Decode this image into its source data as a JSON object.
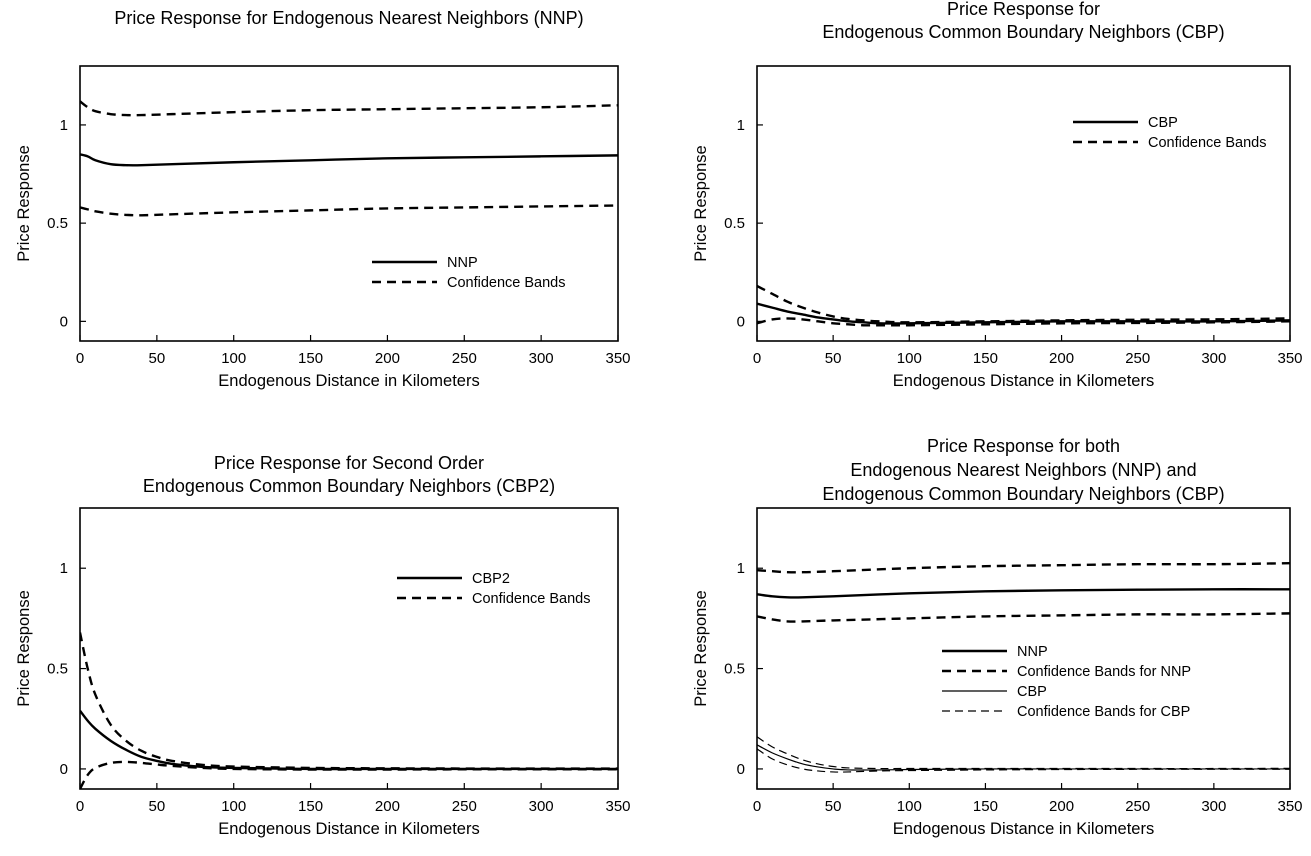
{
  "chart_data": [
    {
      "type": "line",
      "title_lines": [
        "Price Response for Endogenous Nearest Neighbors (NNP)"
      ],
      "xlabel": "Endogenous Distance in Kilometers",
      "ylabel": "Price Response",
      "xlim": [
        0,
        350
      ],
      "ylim": [
        -0.1,
        1.3
      ],
      "xticks": [
        0,
        50,
        100,
        150,
        200,
        250,
        300,
        350
      ],
      "yticks": [
        0,
        0.5,
        1
      ],
      "grid": false,
      "legend_position": "lower-right",
      "legend": [
        {
          "label": "NNP",
          "style": "solid"
        },
        {
          "label": "Confidence Bands",
          "style": "dashed"
        }
      ],
      "series": [
        {
          "name": "NNP",
          "style": "solid",
          "weight": "bold",
          "x": [
            0,
            5,
            10,
            20,
            30,
            40,
            60,
            100,
            150,
            200,
            250,
            300,
            350
          ],
          "y": [
            0.85,
            0.84,
            0.82,
            0.8,
            0.795,
            0.795,
            0.8,
            0.81,
            0.82,
            0.83,
            0.835,
            0.84,
            0.845
          ]
        },
        {
          "name": "Confidence Bands",
          "style": "dashed",
          "weight": "bold",
          "x": [
            0,
            5,
            10,
            20,
            30,
            40,
            60,
            100,
            150,
            200,
            250,
            300,
            350
          ],
          "y": [
            1.12,
            1.09,
            1.07,
            1.055,
            1.05,
            1.05,
            1.055,
            1.065,
            1.075,
            1.08,
            1.085,
            1.09,
            1.1
          ]
        },
        {
          "name": "Confidence Bands",
          "style": "dashed",
          "weight": "bold",
          "x": [
            0,
            5,
            10,
            20,
            30,
            40,
            60,
            100,
            150,
            200,
            250,
            300,
            350
          ],
          "y": [
            0.58,
            0.57,
            0.56,
            0.548,
            0.542,
            0.54,
            0.545,
            0.555,
            0.565,
            0.575,
            0.58,
            0.585,
            0.59
          ]
        }
      ]
    },
    {
      "type": "line",
      "title_lines": [
        "Price Response for",
        "Endogenous Common Boundary Neighbors (CBP)"
      ],
      "xlabel": "Endogenous Distance in Kilometers",
      "ylabel": "Price Response",
      "xlim": [
        0,
        350
      ],
      "ylim": [
        -0.1,
        1.3
      ],
      "xticks": [
        0,
        50,
        100,
        150,
        200,
        250,
        300,
        350
      ],
      "yticks": [
        0,
        0.5,
        1
      ],
      "grid": false,
      "legend_position": "upper-right",
      "legend": [
        {
          "label": "CBP",
          "style": "solid"
        },
        {
          "label": "Confidence Bands",
          "style": "dashed"
        }
      ],
      "series": [
        {
          "name": "CBP",
          "style": "solid",
          "weight": "bold",
          "x": [
            0,
            10,
            20,
            30,
            40,
            50,
            60,
            70,
            80,
            100,
            150,
            200,
            250,
            300,
            350
          ],
          "y": [
            0.09,
            0.07,
            0.05,
            0.035,
            0.02,
            0.01,
            0.0,
            -0.005,
            -0.01,
            -0.01,
            -0.005,
            0.0,
            0.0,
            0.0,
            0.005
          ]
        },
        {
          "name": "Confidence Bands",
          "style": "dashed",
          "weight": "bold",
          "x": [
            0,
            10,
            20,
            30,
            40,
            50,
            60,
            70,
            80,
            100,
            150,
            200,
            250,
            300,
            350
          ],
          "y": [
            0.18,
            0.14,
            0.1,
            0.07,
            0.045,
            0.025,
            0.012,
            0.005,
            0.0,
            -0.005,
            0.0,
            0.005,
            0.008,
            0.01,
            0.015
          ]
        },
        {
          "name": "Confidence Bands",
          "style": "dashed",
          "weight": "bold",
          "x": [
            0,
            10,
            20,
            30,
            40,
            50,
            60,
            70,
            80,
            100,
            150,
            200,
            250,
            300,
            350
          ],
          "y": [
            -0.01,
            0.01,
            0.015,
            0.01,
            0.0,
            -0.01,
            -0.015,
            -0.02,
            -0.02,
            -0.02,
            -0.015,
            -0.01,
            -0.008,
            -0.005,
            0.0
          ]
        }
      ]
    },
    {
      "type": "line",
      "title_lines": [
        "Price Response for Second Order",
        "Endogenous Common Boundary Neighbors (CBP2)"
      ],
      "xlabel": "Endogenous Distance in Kilometers",
      "ylabel": "Price Response",
      "xlim": [
        0,
        350
      ],
      "ylim": [
        -0.1,
        1.3
      ],
      "xticks": [
        0,
        50,
        100,
        150,
        200,
        250,
        300,
        350
      ],
      "yticks": [
        0,
        0.5,
        1
      ],
      "grid": false,
      "legend_position": "upper-right",
      "legend": [
        {
          "label": "CBP2",
          "style": "solid"
        },
        {
          "label": "Confidence Bands",
          "style": "dashed"
        }
      ],
      "series": [
        {
          "name": "CBP2",
          "style": "solid",
          "weight": "bold",
          "x": [
            0,
            5,
            10,
            20,
            30,
            40,
            50,
            60,
            80,
            100,
            150,
            200,
            250,
            300,
            350
          ],
          "y": [
            0.29,
            0.24,
            0.2,
            0.14,
            0.095,
            0.06,
            0.04,
            0.025,
            0.01,
            0.005,
            0.0,
            0.0,
            0.0,
            0.0,
            0.0
          ]
        },
        {
          "name": "Confidence Bands",
          "style": "dashed",
          "weight": "bold",
          "x": [
            0,
            5,
            10,
            20,
            30,
            40,
            50,
            60,
            80,
            100,
            150,
            200,
            250,
            300,
            350
          ],
          "y": [
            0.68,
            0.5,
            0.37,
            0.22,
            0.14,
            0.09,
            0.06,
            0.04,
            0.02,
            0.012,
            0.005,
            0.003,
            0.002,
            0.002,
            0.002
          ]
        },
        {
          "name": "Confidence Bands",
          "style": "dashed",
          "weight": "bold",
          "x": [
            0,
            5,
            10,
            20,
            30,
            40,
            50,
            60,
            80,
            100,
            150,
            200,
            250,
            300,
            350
          ],
          "y": [
            -0.1,
            -0.03,
            0.005,
            0.03,
            0.035,
            0.03,
            0.022,
            0.015,
            0.005,
            0.0,
            -0.003,
            -0.003,
            -0.002,
            -0.002,
            -0.002
          ]
        }
      ]
    },
    {
      "type": "line",
      "title_lines": [
        "Price Response for both",
        "Endogenous Nearest Neighbors (NNP) and",
        "Endogenous Common Boundary Neighbors (CBP)"
      ],
      "xlabel": "Endogenous Distance in Kilometers",
      "ylabel": "Price Response",
      "xlim": [
        0,
        350
      ],
      "ylim": [
        -0.1,
        1.3
      ],
      "xticks": [
        0,
        50,
        100,
        150,
        200,
        250,
        300,
        350
      ],
      "yticks": [
        0,
        0.5,
        1
      ],
      "grid": false,
      "legend_position": "lower-right",
      "legend": [
        {
          "label": "NNP",
          "style": "solid",
          "weight": "bold"
        },
        {
          "label": "Confidence Bands for NNP",
          "style": "dashed",
          "weight": "bold"
        },
        {
          "label": "CBP",
          "style": "solid",
          "weight": "thin"
        },
        {
          "label": "Confidence Bands for CBP",
          "style": "dashed",
          "weight": "thin"
        }
      ],
      "series": [
        {
          "name": "NNP",
          "style": "solid",
          "weight": "bold",
          "x": [
            0,
            10,
            20,
            30,
            50,
            100,
            150,
            200,
            250,
            300,
            350
          ],
          "y": [
            0.87,
            0.86,
            0.855,
            0.855,
            0.86,
            0.875,
            0.885,
            0.89,
            0.893,
            0.895,
            0.895
          ]
        },
        {
          "name": "Confidence Bands for NNP",
          "style": "dashed",
          "weight": "bold",
          "x": [
            0,
            10,
            20,
            30,
            50,
            100,
            150,
            200,
            250,
            300,
            350
          ],
          "y": [
            0.99,
            0.985,
            0.98,
            0.98,
            0.985,
            1.0,
            1.01,
            1.015,
            1.02,
            1.02,
            1.025
          ]
        },
        {
          "name": "Confidence Bands for NNP",
          "style": "dashed",
          "weight": "bold",
          "x": [
            0,
            10,
            20,
            30,
            50,
            100,
            150,
            200,
            250,
            300,
            350
          ],
          "y": [
            0.76,
            0.745,
            0.735,
            0.735,
            0.74,
            0.75,
            0.76,
            0.765,
            0.77,
            0.77,
            0.775
          ]
        },
        {
          "name": "CBP",
          "style": "solid",
          "weight": "thin",
          "x": [
            0,
            10,
            20,
            30,
            40,
            50,
            60,
            80,
            100,
            150,
            200,
            250,
            300,
            350
          ],
          "y": [
            0.12,
            0.08,
            0.05,
            0.025,
            0.01,
            0.0,
            -0.005,
            -0.005,
            -0.003,
            0.0,
            0.0,
            0.0,
            0.0,
            0.0
          ]
        },
        {
          "name": "Confidence Bands for CBP",
          "style": "dashed",
          "weight": "thin",
          "x": [
            0,
            10,
            20,
            30,
            40,
            50,
            60,
            80,
            100,
            150,
            200,
            250,
            300,
            350
          ],
          "y": [
            0.16,
            0.11,
            0.075,
            0.045,
            0.025,
            0.012,
            0.005,
            0.002,
            0.002,
            0.002,
            0.002,
            0.002,
            0.002,
            0.003
          ]
        },
        {
          "name": "Confidence Bands for CBP",
          "style": "dashed",
          "weight": "thin",
          "x": [
            0,
            10,
            20,
            30,
            40,
            50,
            60,
            80,
            100,
            150,
            200,
            250,
            300,
            350
          ],
          "y": [
            0.1,
            0.05,
            0.02,
            0.0,
            -0.01,
            -0.015,
            -0.015,
            -0.01,
            -0.008,
            -0.005,
            -0.003,
            -0.002,
            -0.002,
            -0.002
          ]
        }
      ]
    }
  ]
}
